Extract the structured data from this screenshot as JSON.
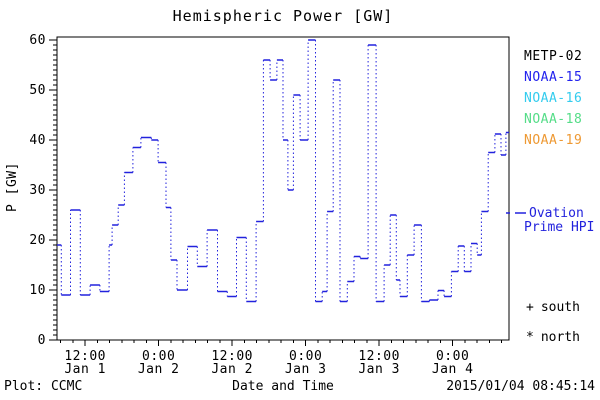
{
  "title": "Hemispheric Power [GW]",
  "y_axis": {
    "label": "P [GW]",
    "min": 0,
    "max": 60,
    "major_tick_step": 10,
    "minor_tick_step": 1,
    "tick_labels": [
      "0",
      "10",
      "20",
      "30",
      "40",
      "50",
      "60"
    ]
  },
  "x_axis": {
    "label": "Date and Time",
    "minor_tick_hours": 2,
    "major_ticks": [
      {
        "hour": 12,
        "time": "12:00",
        "date": "Jan 1"
      },
      {
        "hour": 24,
        "time": "0:00",
        "date": "Jan 2"
      },
      {
        "hour": 36,
        "time": "12:00",
        "date": "Jan 2"
      },
      {
        "hour": 48,
        "time": "0:00",
        "date": "Jan 3"
      },
      {
        "hour": 60,
        "time": "12:00",
        "date": "Jan 3"
      },
      {
        "hour": 72,
        "time": "0:00",
        "date": "Jan 4"
      }
    ]
  },
  "legend": {
    "satellites": [
      {
        "label": "METP-02",
        "color": "#000000"
      },
      {
        "label": "NOAA-15",
        "color": "#2222ee"
      },
      {
        "label": "NOAA-16",
        "color": "#33ccee"
      },
      {
        "label": "NOAA-18",
        "color": "#55dd88"
      },
      {
        "label": "NOAA-19",
        "color": "#ee9933"
      }
    ],
    "line_label_line1": "Ovation",
    "line_label_line2": "Prime HPI",
    "line_color": "#2222dd",
    "markers": [
      {
        "symbol": "+",
        "label": "south"
      },
      {
        "symbol": "*",
        "label": "north"
      }
    ]
  },
  "footer": {
    "left": "Plot: CCMC",
    "timestamp": "2015/01/04 08:45:14"
  },
  "chart_data": {
    "type": "line",
    "subtype": "step",
    "title": "Hemispheric Power [GW]",
    "xlabel": "Date and Time",
    "ylabel": "P [GW]",
    "ylim": [
      0,
      60
    ],
    "xlim_hours_since_jan1_0000": [
      7.4,
      81.2
    ],
    "grid": false,
    "legend_position": "right-outside",
    "line_style": "solid horizontals with dotted vertical connectors",
    "series": [
      {
        "name": "Ovation Prime HPI",
        "color": "#2222dd",
        "steps_t_hours": [
          7.4,
          8.1,
          9.6,
          11.2,
          12.8,
          14.4,
          15.9,
          16.4,
          17.4,
          18.4,
          19.8,
          21.1,
          22.8,
          23.9,
          25.2,
          26.0,
          27.0,
          28.7,
          30.3,
          31.9,
          33.6,
          35.2,
          36.7,
          38.3,
          39.9,
          41.1,
          42.2,
          43.3,
          44.3,
          45.1,
          46.0,
          47.1,
          48.4,
          49.6,
          50.7,
          51.5,
          52.5,
          53.6,
          54.8,
          55.9,
          56.9,
          58.2,
          59.5,
          60.8,
          61.8,
          62.8,
          63.4,
          64.6,
          65.7,
          66.9,
          68.2,
          69.6,
          70.6,
          71.8,
          72.9,
          73.9,
          75.0,
          76.0,
          76.7,
          77.8,
          78.9,
          79.9,
          80.7
        ],
        "values_gw": [
          19,
          9,
          26,
          9,
          11,
          9.7,
          19,
          23,
          27,
          33.5,
          38.5,
          40.5,
          40,
          35.5,
          26.5,
          16,
          10,
          18.7,
          14.7,
          22,
          9.7,
          8.7,
          20.5,
          7.7,
          23.7,
          56,
          52,
          56,
          40,
          30,
          49,
          40,
          60,
          7.7,
          9.7,
          25.7,
          52,
          7.7,
          11.7,
          16.7,
          16.3,
          59,
          7.7,
          15,
          25,
          12,
          8.7,
          17,
          23,
          7.7,
          8,
          9.9,
          8.7,
          13.7,
          18.8,
          13.7,
          19.3,
          17,
          25.7,
          37.5,
          41.2,
          37,
          41.5
        ],
        "t_end_hours": 81.2
      }
    ]
  }
}
